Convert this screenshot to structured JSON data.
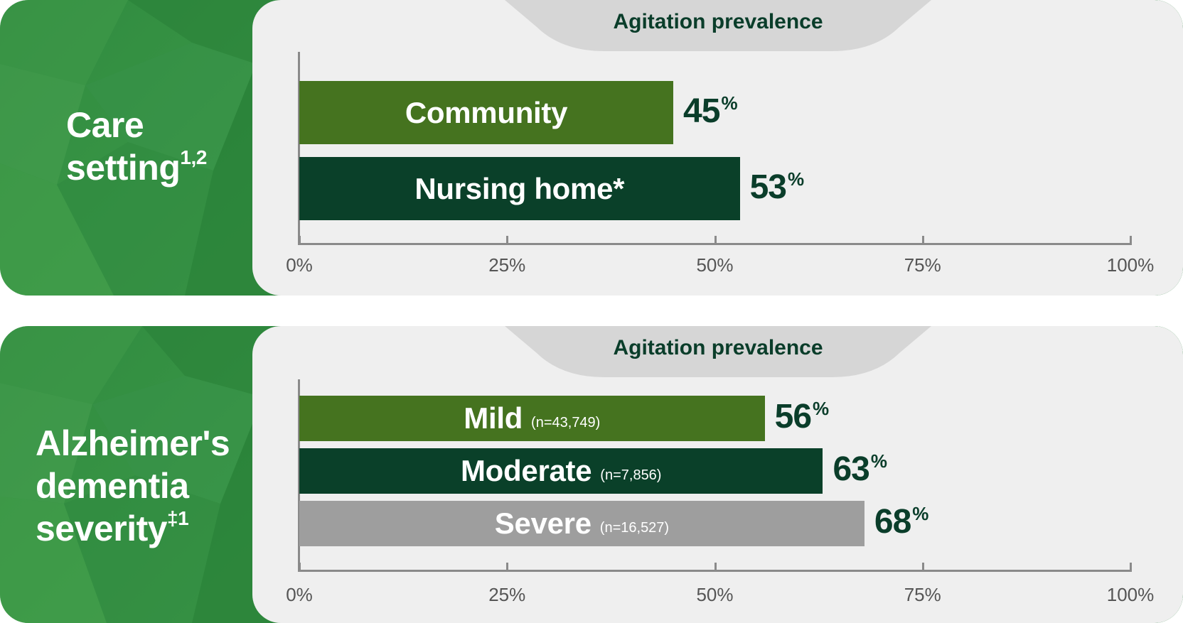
{
  "colors": {
    "community": "#45731f",
    "nursing_home": "#0a4029",
    "mild": "#45731f",
    "moderate": "#0a4029",
    "severe": "#9e9e9e",
    "value_text": "#0a3d2a",
    "panel_green": "#2f8a3f",
    "card_bg": "#efefef"
  },
  "chart_data": [
    {
      "type": "bar",
      "orientation": "horizontal",
      "title": "Agitation prevalence",
      "row_label": "Care setting",
      "row_label_sup": "1,2",
      "categories": [
        "Community",
        "Nursing home*"
      ],
      "values": [
        45,
        53
      ],
      "value_labels": [
        "45",
        "53"
      ],
      "value_suffix": "%",
      "xlim": [
        0,
        100
      ],
      "xticks": [
        "0%",
        "25%",
        "50%",
        "75%",
        "100%"
      ]
    },
    {
      "type": "bar",
      "orientation": "horizontal",
      "title": "Agitation prevalence",
      "row_label_lines": [
        "Alzheimer's",
        "dementia",
        "severity"
      ],
      "row_label_sup": "‡1",
      "categories": [
        "Mild",
        "Moderate",
        "Severe"
      ],
      "category_notes": [
        "(n=43,749)",
        "(n=7,856)",
        "(n=16,527)"
      ],
      "values": [
        56,
        63,
        68
      ],
      "value_labels": [
        "56",
        "63",
        "68"
      ],
      "value_suffix": "%",
      "xlim": [
        0,
        100
      ],
      "xticks": [
        "0%",
        "25%",
        "50%",
        "75%",
        "100%"
      ]
    }
  ]
}
